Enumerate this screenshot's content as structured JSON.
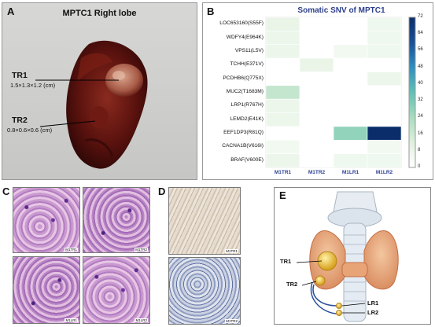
{
  "panel_a": {
    "letter": "A",
    "title": "MPTC1 Right lobe",
    "tr1_label": "TR1",
    "tr1_dims": "1.5×1.3×1.2 (cm)",
    "tr2_label": "TR2",
    "tr2_dims": "0.8×0.6×0.6 (cm)"
  },
  "panel_b": {
    "letter": "B",
    "colorbar_ticks": [
      "72",
      "64",
      "56",
      "48",
      "40",
      "32",
      "24",
      "16",
      "8",
      "0"
    ]
  },
  "panel_c": {
    "letter": "C",
    "tags": [
      "M1TR1",
      "M1TR2",
      "M1LR1",
      "M1LR2"
    ]
  },
  "panel_d": {
    "letter": "D",
    "tags": [
      "M1TR1",
      "M1TR2"
    ]
  },
  "panel_e": {
    "letter": "E",
    "labels": [
      "TR1",
      "TR2",
      "LR1",
      "LR2"
    ]
  },
  "chart_data": {
    "type": "heatmap",
    "title": "Somatic SNV of MPTC1",
    "rows": [
      "LOC653160(S55F)",
      "WDFY4(E964K)",
      "VPS11(L5V)",
      "TCHH(E371V)",
      "PCDHB6(Q775X)",
      "MUC2(T1683M)",
      "LRP1(R767H)",
      "LEMD2(E41K)",
      "EEF1DP3(R81Q)",
      "CACNA1B(V616I)",
      "BRAF(V600E)"
    ],
    "columns": [
      "M1TR1",
      "M1TR2",
      "M1LR1",
      "M1LR2"
    ],
    "values": [
      [
        8,
        0,
        0,
        6
      ],
      [
        7,
        0,
        0,
        6
      ],
      [
        7,
        0,
        5,
        6
      ],
      [
        0,
        8,
        0,
        0
      ],
      [
        0,
        0,
        0,
        7
      ],
      [
        18,
        0,
        0,
        0
      ],
      [
        7,
        0,
        0,
        0
      ],
      [
        7,
        0,
        0,
        0
      ],
      [
        0,
        0,
        28,
        72
      ],
      [
        5,
        0,
        0,
        5
      ],
      [
        7,
        0,
        6,
        6
      ]
    ],
    "vmin": 0,
    "vmax": 72,
    "colormap": [
      "#ffffff",
      "#dff0dd",
      "#a9dcbf",
      "#62c0b4",
      "#2f8fc0",
      "#1a4f95",
      "#0b2e6b"
    ],
    "legend_placement": "right"
  }
}
